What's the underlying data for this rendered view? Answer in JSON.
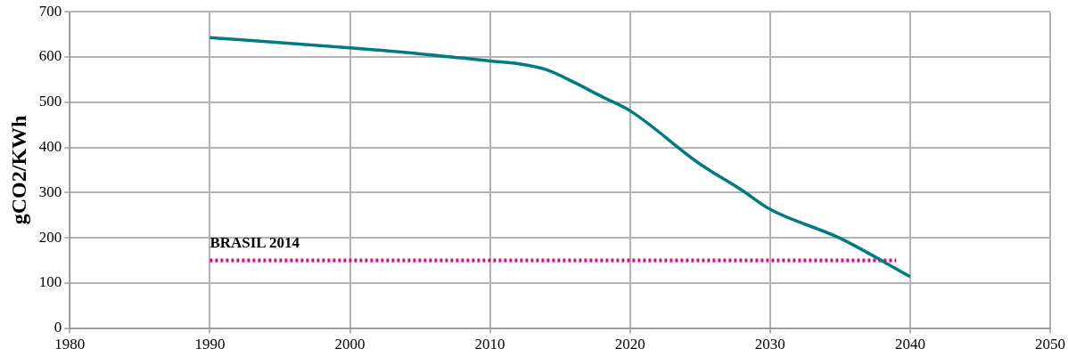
{
  "chart_data": {
    "type": "line",
    "ylabel": "gCO2/KWh",
    "xlim": [
      1980,
      2050
    ],
    "xticks": [
      1980,
      1990,
      2000,
      2010,
      2020,
      2030,
      2040,
      2050
    ],
    "ylim": [
      0,
      700
    ],
    "yticks": [
      0,
      100,
      200,
      300,
      400,
      500,
      600,
      700
    ],
    "grid": true,
    "legend": false,
    "marker": "none",
    "series": [
      {
        "color": "#007b83",
        "line_style": "solid",
        "x": [
          1990,
          2000,
          2005,
          2010,
          2012,
          2014,
          2016,
          2018,
          2020,
          2025,
          2028,
          2030,
          2035,
          2040
        ],
        "values": [
          643,
          620,
          607,
          591,
          585,
          572,
          544,
          512,
          481,
          363,
          305,
          263,
          199,
          114
        ]
      },
      {
        "name": "BRASIL 2014",
        "color": "#e6007e",
        "line_style": "dotted",
        "x": [
          1990,
          2039
        ],
        "values": [
          150,
          150
        ]
      }
    ]
  }
}
